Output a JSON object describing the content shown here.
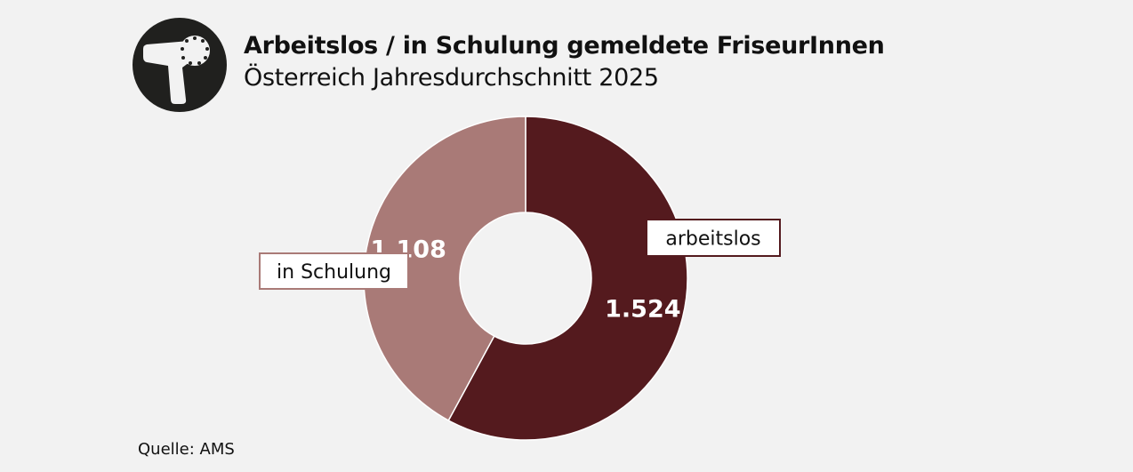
{
  "header": {
    "title": "Arbeitslos / in Schulung gemeldete FriseurInnen",
    "subtitle": "Österreich Jahresdurchschnitt 2025",
    "logo_icon": "hair-dryer-icon"
  },
  "chart_data": {
    "type": "donut",
    "title": "Arbeitslos / in Schulung gemeldete FriseurInnen",
    "subtitle": "Österreich Jahresdurchschnitt 2025",
    "slices": [
      {
        "label": "arbeitslos",
        "value": 1524,
        "value_label": "1.524",
        "color": "#541a1e"
      },
      {
        "label": "in Schulung",
        "value": 1108,
        "value_label": "1.108",
        "color": "#a97a77"
      }
    ],
    "legend": "callout labels beside slices"
  },
  "footer": {
    "source": "Quelle: AMS"
  },
  "colors": {
    "background": "#f2f2f2",
    "logo": "#20201e",
    "label_box": "#ffffff",
    "value_text": "#ffffff"
  }
}
